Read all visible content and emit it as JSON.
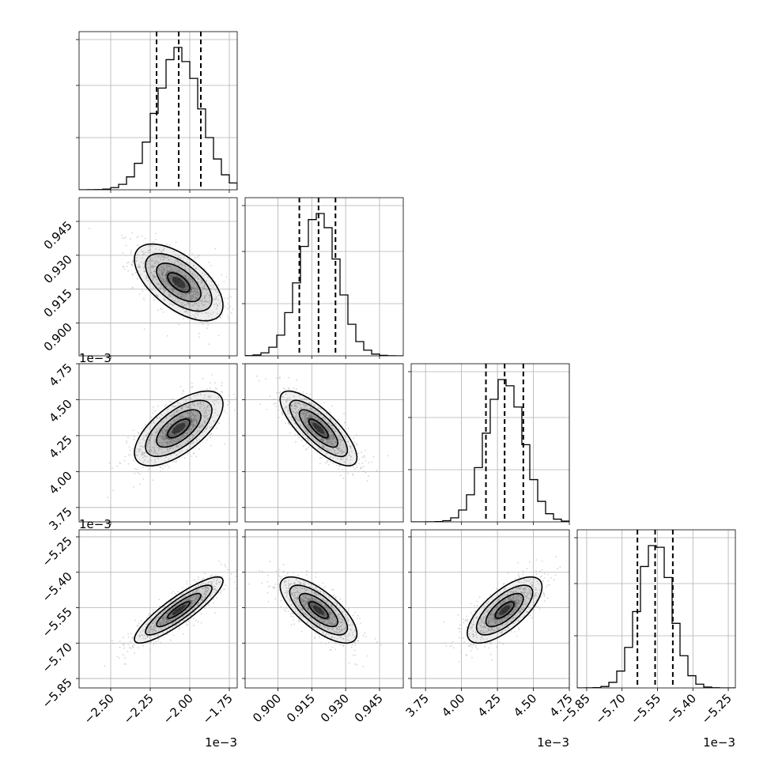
{
  "chart_data": {
    "type": "corner",
    "dimensions": 4,
    "axes": [
      {
        "range": [
          -2.7,
          -1.7
        ],
        "ticks": [
          -2.5,
          -2.25,
          -2.0,
          -1.75
        ],
        "tick_labels": [
          "−2.50",
          "−2.25",
          "−2.00",
          "−1.75"
        ],
        "offset_text": "1e−3",
        "mean": -2.07,
        "sd": 0.14,
        "quantiles": [
          -2.21,
          -2.07,
          -1.93
        ]
      },
      {
        "range": [
          0.8855,
          0.9555
        ],
        "ticks": [
          0.9,
          0.915,
          0.93,
          0.945
        ],
        "tick_labels": [
          "0.900",
          "0.915",
          "0.930",
          "0.945"
        ],
        "offset_text": "",
        "mean": 0.918,
        "sd": 0.0085,
        "quantiles": [
          0.9095,
          0.918,
          0.9255
        ]
      },
      {
        "range": [
          3.65,
          4.75
        ],
        "ticks": [
          3.75,
          4.0,
          4.25,
          4.5,
          4.75
        ],
        "tick_labels": [
          "3.75",
          "4.00",
          "4.25",
          "4.50",
          "4.75"
        ],
        "offset_text": "1e−3",
        "mean": 4.3,
        "sd": 0.13,
        "quantiles": [
          4.17,
          4.3,
          4.43
        ]
      },
      {
        "range": [
          -5.89,
          -5.22
        ],
        "ticks": [
          -5.85,
          -5.7,
          -5.55,
          -5.4,
          -5.25
        ],
        "tick_labels": [
          "−5.85",
          "−5.70",
          "−5.55",
          "−5.40",
          "−5.25"
        ],
        "offset_text": "1e−3",
        "mean": -5.56,
        "sd": 0.07,
        "quantiles": [
          -5.635,
          -5.56,
          -5.485
        ]
      }
    ],
    "correlations": [
      [
        1,
        -0.6,
        0.65,
        0.88
      ],
      [
        -0.6,
        1,
        -0.78,
        -0.72
      ],
      [
        0.65,
        -0.78,
        1,
        0.7
      ],
      [
        0.88,
        -0.72,
        0.7,
        1
      ]
    ],
    "histogram_bins": 20,
    "contour_levels": [
      0.5,
      1.0,
      1.5,
      2.0
    ],
    "grid": true,
    "colors": {
      "points": "#b3b3b3",
      "density": "#000000",
      "lines": "#000000"
    }
  }
}
